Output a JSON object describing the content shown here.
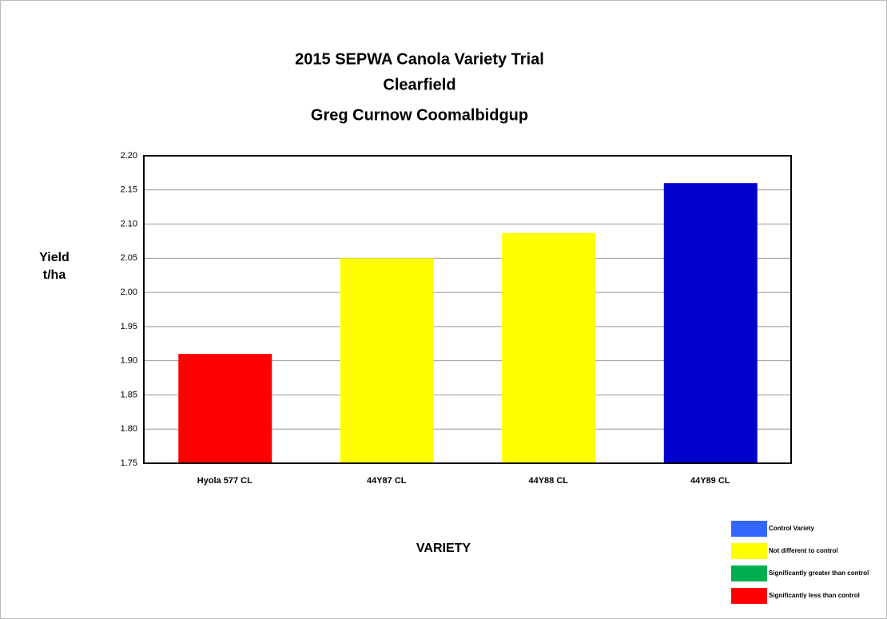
{
  "chart_data": {
    "type": "bar",
    "title": [
      "2015 SEPWA Canola Variety Trial",
      "Clearfield",
      "Greg Curnow Coomalbidgup"
    ],
    "y_label": [
      "Yield",
      "t/ha"
    ],
    "x_label": "VARIETY",
    "categories": [
      "Hyola 577 CL",
      "44Y87 CL",
      "44Y88 CL",
      "44Y89 CL"
    ],
    "values": [
      1.91,
      2.05,
      2.087,
      2.16
    ],
    "colors": [
      "#ff0000",
      "#ffff00",
      "#ffff00",
      "#0000cc"
    ],
    "ylim": [
      1.75,
      2.2
    ],
    "yticks": [
      1.75,
      {
        "value": 1.8,
        "label": "1.80"
      },
      1.85,
      {
        "value": 1.9,
        "label": "1.90"
      },
      1.95,
      {
        "value": 2.0,
        "label": "2.00"
      },
      2.05,
      {
        "value": 2.1,
        "label": "2.10"
      },
      2.15,
      {
        "value": 2.2,
        "label": "2.20"
      }
    ],
    "grid": true,
    "legend": [
      {
        "label": "Control Variety",
        "color": "#3366ff"
      },
      {
        "label": "Not different to control",
        "color": "#ffff00"
      },
      {
        "label": "Significantly greater than control",
        "color": "#00b050"
      },
      {
        "label": "Significantly less than control",
        "color": "#ff0000"
      }
    ]
  }
}
